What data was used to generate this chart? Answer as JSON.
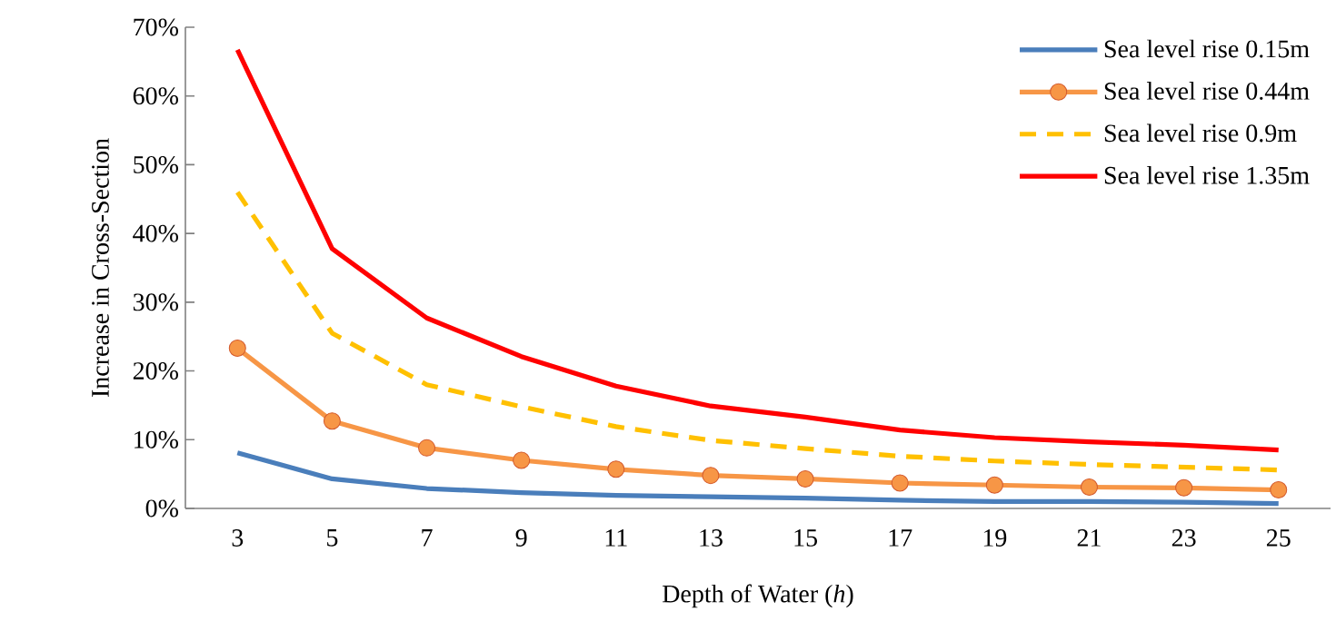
{
  "chart_data": {
    "type": "line",
    "xlabel": "Depth of Water (*h*)",
    "ylabel": "Increase in Cross-Section",
    "categories": [
      "3",
      "5",
      "7",
      "9",
      "11",
      "13",
      "15",
      "17",
      "19",
      "21",
      "23",
      "25"
    ],
    "series": [
      {
        "name": "Sea level rise 0.15m",
        "color": "#4a7ebb",
        "marker": "none",
        "line_style": "solid",
        "values": [
          8.1,
          4.3,
          2.9,
          2.3,
          1.9,
          1.7,
          1.5,
          1.2,
          1.0,
          1.0,
          0.9,
          0.7
        ]
      },
      {
        "name": "Sea level rise 0.44m",
        "color": "#f79646",
        "marker": "circle",
        "line_style": "solid",
        "values": [
          23.3,
          12.7,
          8.8,
          7.0,
          5.7,
          4.8,
          4.3,
          3.7,
          3.4,
          3.1,
          3.0,
          2.7
        ]
      },
      {
        "name": "Sea level rise 0.9m",
        "color": "#ffc000",
        "marker": "none",
        "line_style": "dashed",
        "values": [
          46,
          25.5,
          18,
          14.8,
          11.9,
          9.9,
          8.7,
          7.6,
          6.9,
          6.4,
          6.0,
          5.6
        ]
      },
      {
        "name": "Sea level rise 1.35m",
        "color": "#ff0000",
        "marker": "none",
        "line_style": "solid",
        "values": [
          66.7,
          37.8,
          27.7,
          22.1,
          17.8,
          14.9,
          13.3,
          11.4,
          10.3,
          9.7,
          9.2,
          8.5
        ]
      }
    ],
    "ylim": [
      0,
      70
    ],
    "yticks": [
      {
        "value": 0,
        "label": "0%"
      },
      {
        "value": 10,
        "label": "10%"
      },
      {
        "value": 20,
        "label": "20%"
      },
      {
        "value": 30,
        "label": "30%"
      },
      {
        "value": 40,
        "label": "40%"
      },
      {
        "value": 50,
        "label": "50%"
      },
      {
        "value": 60,
        "label": "60%"
      },
      {
        "value": 70,
        "label": "70%"
      }
    ],
    "grid": false,
    "legend": "top right"
  }
}
